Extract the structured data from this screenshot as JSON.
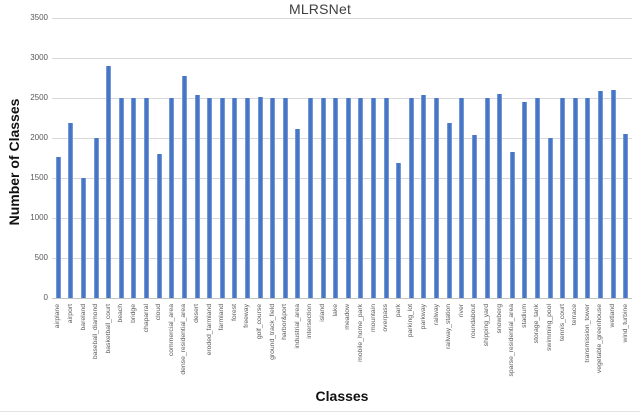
{
  "chart_data": {
    "type": "bar",
    "title": "MLRSNet",
    "xlabel": "Classes",
    "ylabel": "Number of Classes",
    "ylim": [
      0,
      3500
    ],
    "ytick_step": 500,
    "ytick_labels": [
      "0",
      "500",
      "1000",
      "1500",
      "2000",
      "2500",
      "3000",
      "3500"
    ],
    "grid": true,
    "legend": false,
    "bar_color": "#4472C4",
    "bar_edge_color": "#8babdf",
    "gridline_color": "#d9d9d9",
    "axis_line_color": "#c3c3c3",
    "tick_label_color": "#595959",
    "title_color": "#3f3f3f",
    "categories": [
      "airplane",
      "airport",
      "bareland",
      "baseball_diamond",
      "basketball_court",
      "beach",
      "bridge",
      "chaparral",
      "cloud",
      "commercial_area",
      "dense_residential_area",
      "desert",
      "eroded_farmland",
      "farmland",
      "forest",
      "freeway",
      "golf_course",
      "ground_track_field",
      "harbor&port",
      "industrial_area",
      "intersection",
      "island",
      "lake",
      "meadow",
      "mobile_home_park",
      "mountain",
      "overpass",
      "park",
      "parking_lot",
      "parkway",
      "railway",
      "railway_station",
      "river",
      "roundabout",
      "shipping_yard",
      "snowberg",
      "sparse_residential_area",
      "stadium",
      "storage_tank",
      "swimming_pool",
      "tennis_court",
      "terrace",
      "transmission_tower",
      "vegetable_greenhouse",
      "wetland",
      "wind_turbine"
    ],
    "values": [
      1760,
      2185,
      1500,
      2000,
      2895,
      2500,
      2500,
      2500,
      1800,
      2500,
      2775,
      2540,
      2500,
      2500,
      2500,
      2500,
      2515,
      2500,
      2500,
      2110,
      2500,
      2500,
      2500,
      2500,
      2500,
      2500,
      2500,
      1685,
      2500,
      2535,
      2500,
      2185,
      2500,
      2040,
      2500,
      2555,
      1830,
      2450,
      2500,
      2000,
      2500,
      2500,
      2500,
      2585,
      2605,
      2050
    ]
  }
}
